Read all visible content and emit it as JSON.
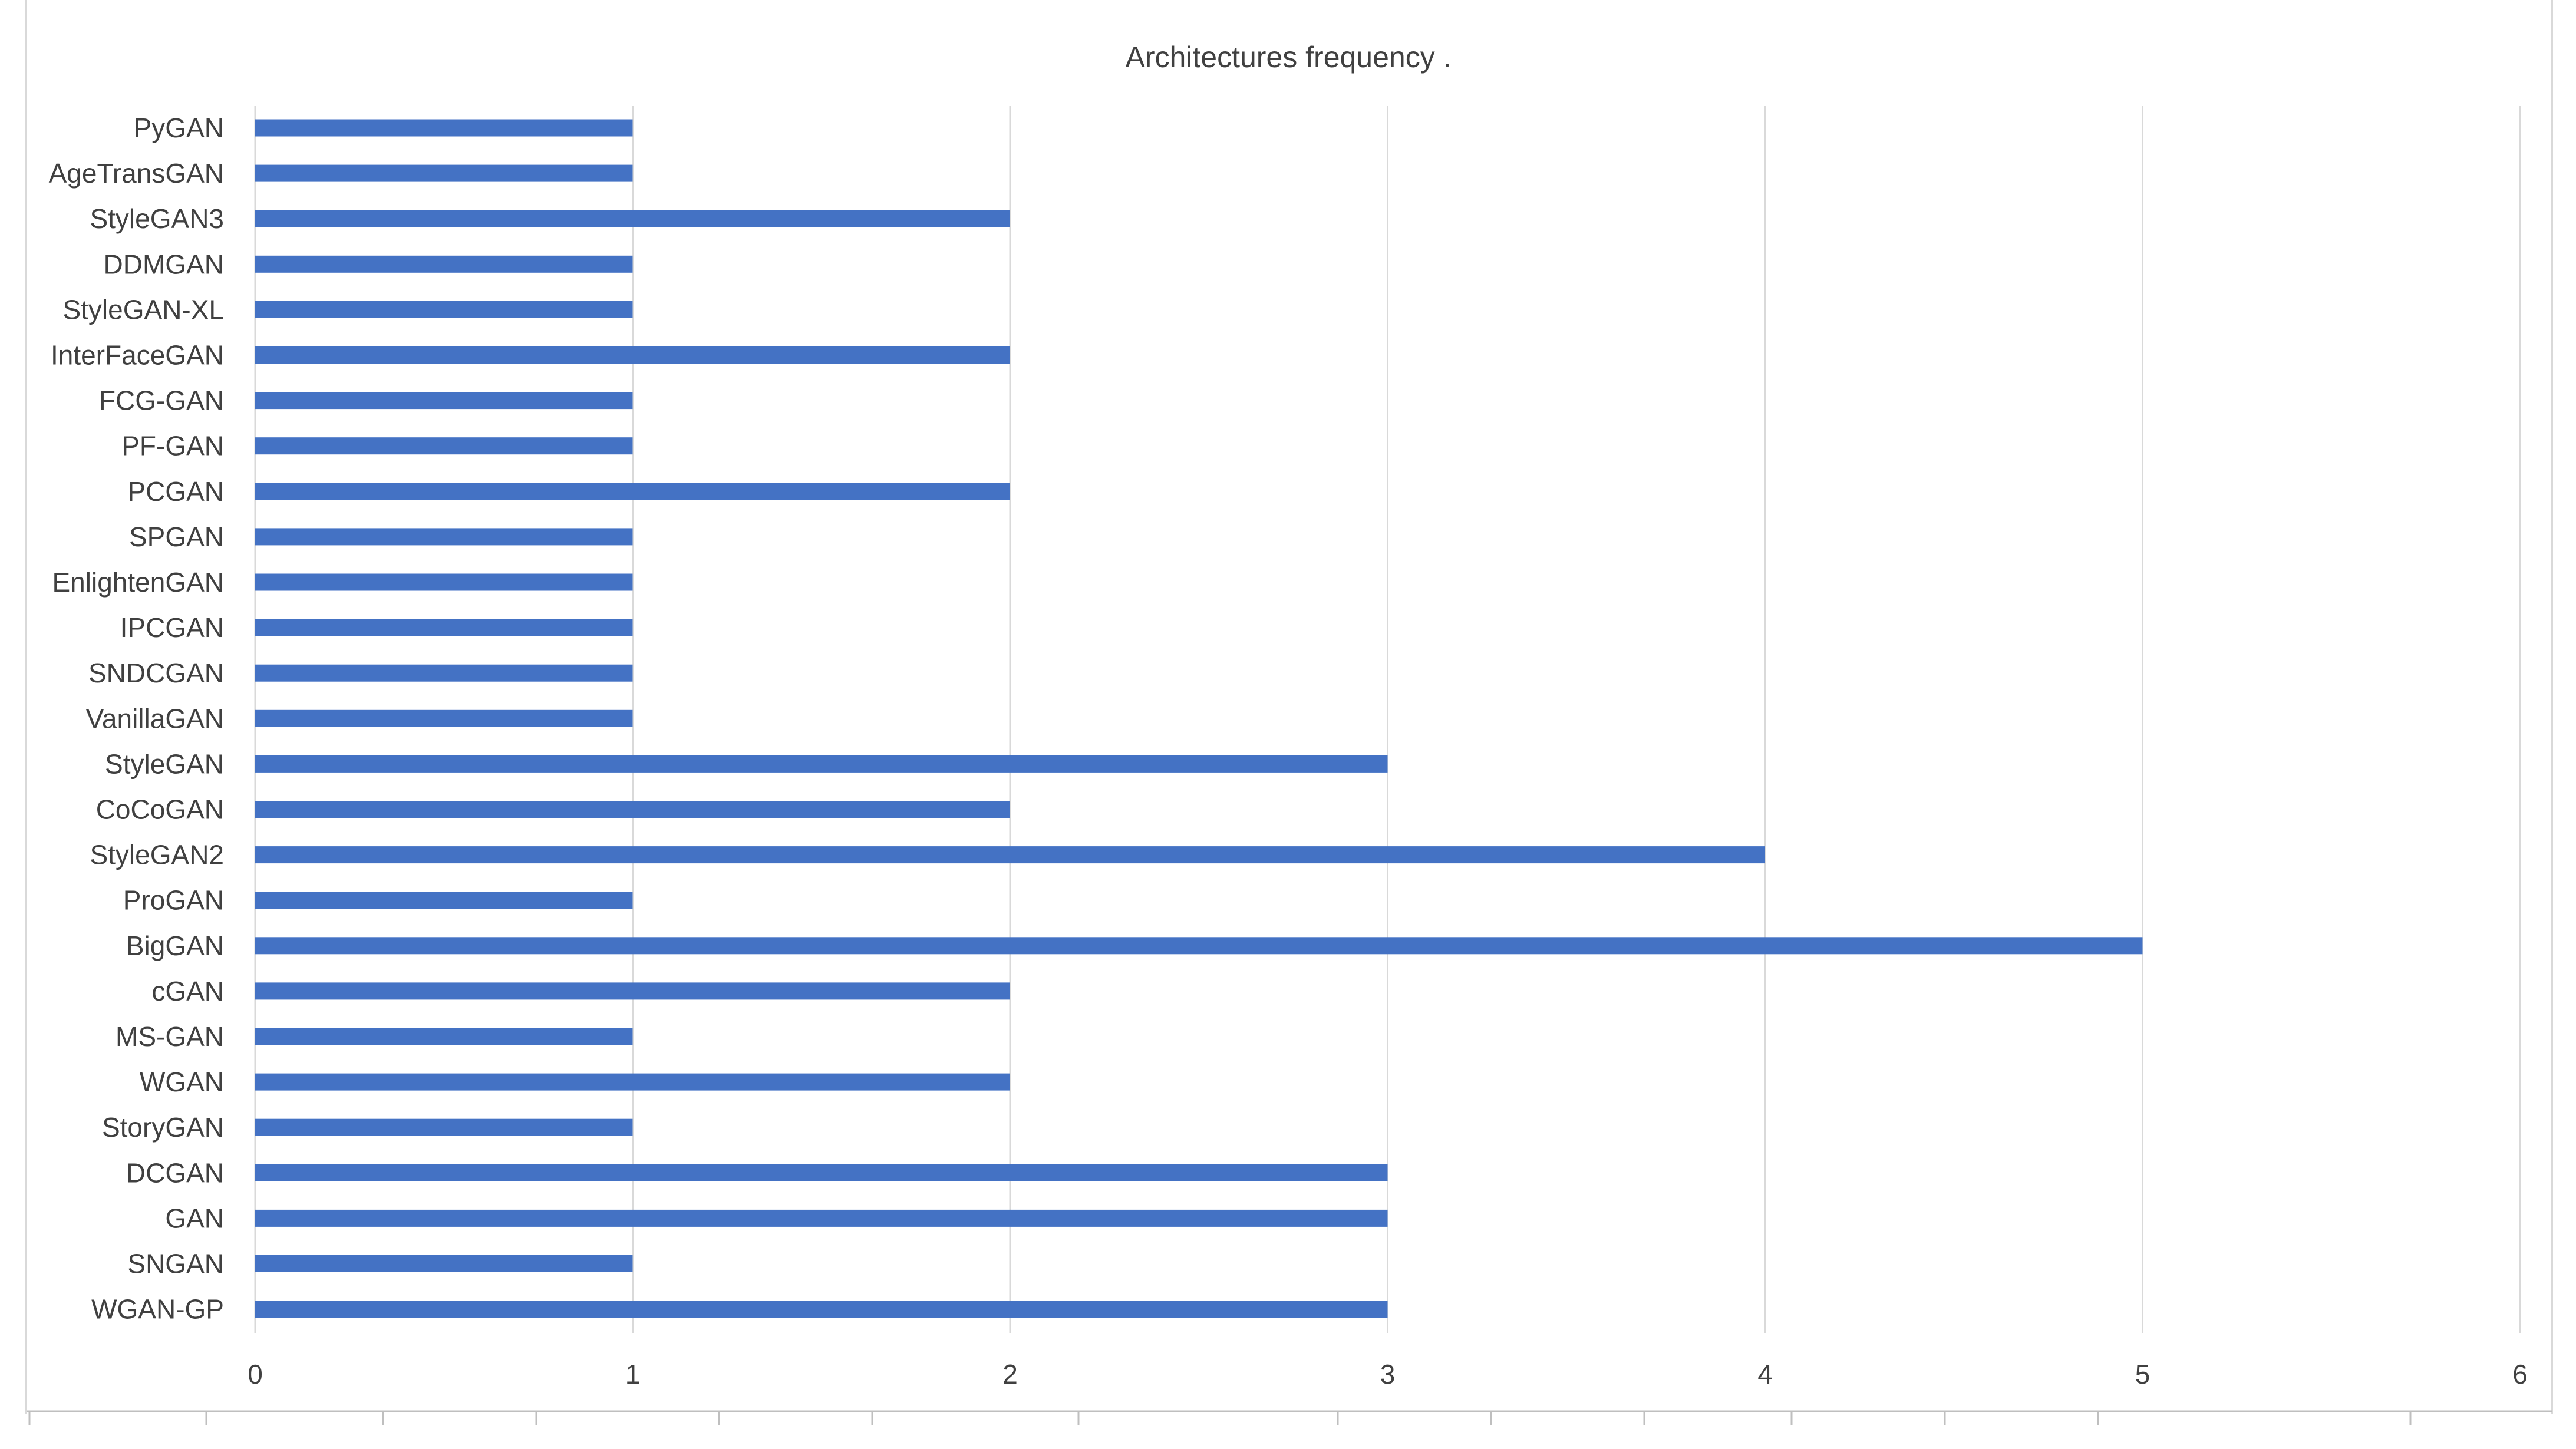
{
  "chart_data": {
    "type": "bar",
    "orientation": "horizontal",
    "title": "Architectures frequency .",
    "xlabel": "",
    "ylabel": "",
    "xlim": [
      0,
      6
    ],
    "x_ticks": [
      "0",
      "1",
      "2",
      "3",
      "4",
      "5",
      "6"
    ],
    "grid": "vertical",
    "legend": "none",
    "bar_color": "#4472C4",
    "categories": [
      "PyGAN",
      "AgeTransGAN",
      "StyleGAN3",
      "DDMGAN",
      "StyleGAN-XL",
      "InterFaceGAN",
      "FCG-GAN",
      "PF-GAN",
      "PCGAN",
      "SPGAN",
      "EnlightenGAN",
      "IPCGAN",
      "SNDCGAN",
      "VanillaGAN",
      "StyleGAN",
      "CoCoGAN",
      "StyleGAN2",
      "ProGAN",
      "BigGAN",
      "cGAN",
      "MS-GAN",
      "WGAN",
      "StoryGAN",
      "DCGAN",
      "GAN",
      "SNGAN",
      "WGAN-GP"
    ],
    "values": [
      1,
      1,
      2,
      1,
      1,
      2,
      1,
      1,
      2,
      1,
      1,
      1,
      1,
      1,
      3,
      2,
      4,
      1,
      5,
      2,
      1,
      2,
      1,
      3,
      3,
      1,
      3
    ]
  }
}
